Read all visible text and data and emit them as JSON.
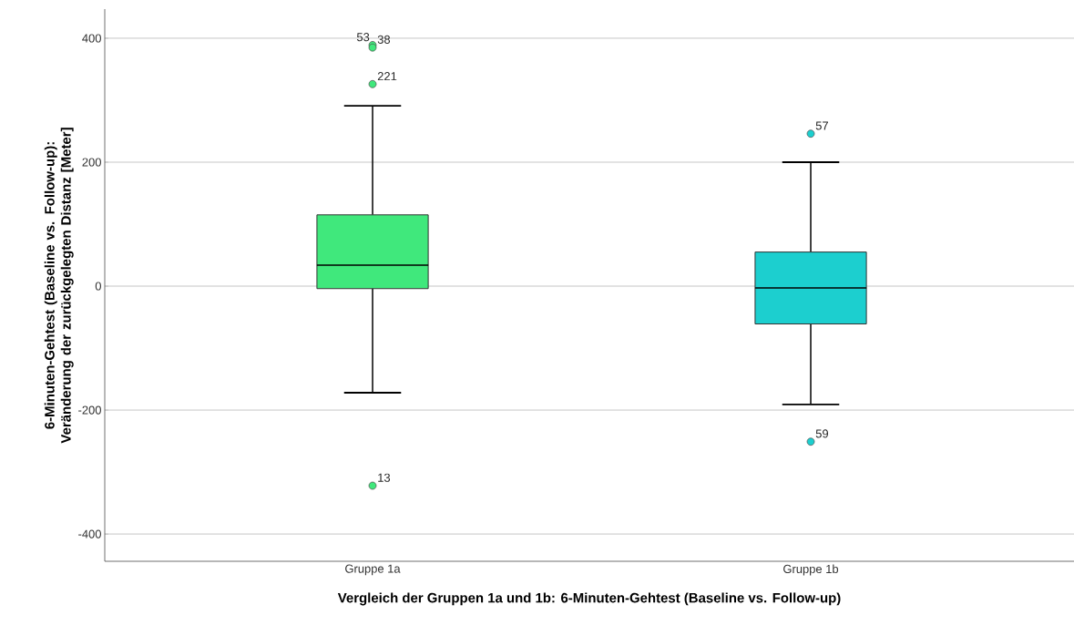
{
  "chart_data": {
    "type": "box",
    "xlabel": "Vergleich der Gruppen 1a und 1b: 6-Minuten-Gehtest (Baseline vs. Follow-up)",
    "ylabel": "6-Minuten-Gehtest (Baseline vs. Follow-up): Veränderung der zurückgelegten Distanz [Meter]",
    "categories": [
      "Gruppe 1a",
      "Gruppe 1b"
    ],
    "colors": [
      "#40e87c",
      "#1ccfcf"
    ],
    "boxes": [
      {
        "low": -172,
        "q1": -4,
        "median": 34,
        "q3": 115,
        "high": 291,
        "outliers": [
          389,
          385,
          326,
          -322
        ]
      },
      {
        "low": -191,
        "q1": -61,
        "median": -3,
        "q3": 55,
        "high": 200,
        "outliers": [
          246,
          -251
        ]
      }
    ],
    "ylim": [
      -444,
      447
    ],
    "yticks": [
      -400,
      -200,
      0,
      200,
      400
    ],
    "grid": "y",
    "annotations": [
      "53",
      "38",
      "221",
      "13",
      "57",
      "59"
    ]
  }
}
